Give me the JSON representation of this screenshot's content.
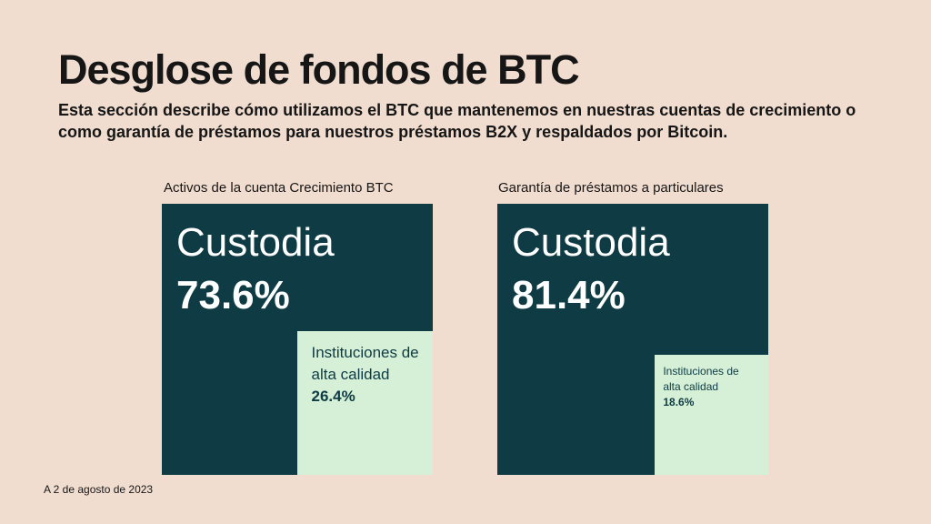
{
  "header": {
    "title": "Desglose de fondos de BTC",
    "subtitle": "Esta sección describe cómo utilizamos el BTC que mantenemos en nuestras cuentas de crecimiento o como garantía de préstamos para nuestros préstamos B2X y respaldados por Bitcoin."
  },
  "colors": {
    "background": "#f1ddcf",
    "custodia": "#0e3b44",
    "instituciones": "#d5f0d6"
  },
  "chart_data": [
    {
      "type": "treemap",
      "title": "Activos de la cuenta Crecimiento BTC",
      "segments": [
        {
          "name": "Custodia",
          "value": 73.6,
          "label": "73.6%"
        },
        {
          "name": "Instituciones de alta calidad",
          "value": 26.4,
          "label": "26.4%"
        }
      ]
    },
    {
      "type": "treemap",
      "title": "Garantía de préstamos a particulares",
      "segments": [
        {
          "name": "Custodia",
          "value": 81.4,
          "label": "81.4%"
        },
        {
          "name": "Instituciones de alta calidad",
          "value": 18.6,
          "label": "18.6%"
        }
      ]
    }
  ],
  "footnote": "A 2 de agosto de 2023"
}
